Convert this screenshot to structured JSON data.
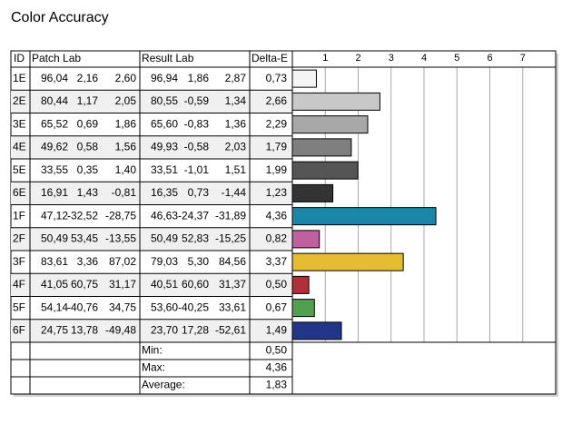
{
  "title": "Color Accuracy",
  "table": {
    "headers": [
      "ID",
      "Patch Lab",
      "Result Lab",
      "Delta-E"
    ],
    "rows": [
      [
        "96,04",
        "2,16",
        "2,60",
        "96,94",
        "1,86",
        "2,87"
      ],
      [
        "80,44",
        "1,17",
        "2,05",
        "80,55",
        "-0,59",
        "1,34"
      ],
      [
        "65,52",
        "0,69",
        "1,86",
        "65,60",
        "-0,83",
        "1,36"
      ],
      [
        "49,62",
        "0,58",
        "1,56",
        "49,93",
        "-0,58",
        "2,03"
      ],
      [
        "33,55",
        "0,35",
        "1,40",
        "33,51",
        "-1,01",
        "1,51"
      ],
      [
        "16,91",
        "1,43",
        "-0,81",
        "16,35",
        "0,73",
        "-1,44"
      ],
      [
        "47,12",
        "-32,52",
        "-28,75",
        "46,63",
        "-24,37",
        "-31,89"
      ],
      [
        "50,49",
        "53,45",
        "-13,55",
        "50,49",
        "52,83",
        "-15,25"
      ],
      [
        "83,61",
        "3,36",
        "87,02",
        "79,03",
        "5,30",
        "84,56"
      ],
      [
        "41,05",
        "60,75",
        "31,17",
        "40,51",
        "60,60",
        "31,37"
      ],
      [
        "54,14",
        "-40,76",
        "34,75",
        "53,60",
        "-40,25",
        "33,61"
      ],
      [
        "24,75",
        "13,78",
        "-49,48",
        "23,70",
        "17,28",
        "-52,61"
      ]
    ],
    "summary": [
      {
        "label": "Min:",
        "value": "0,50"
      },
      {
        "label": "Max:",
        "value": "4,36"
      },
      {
        "label": "Average:",
        "value": "1,83"
      }
    ]
  },
  "chart_data": {
    "type": "bar",
    "orientation": "horizontal",
    "categories": [
      "1E",
      "2E",
      "3E",
      "4E",
      "5E",
      "6E",
      "1F",
      "2F",
      "3F",
      "4F",
      "5F",
      "6F"
    ],
    "values": [
      0.73,
      2.66,
      2.29,
      1.79,
      1.99,
      1.23,
      4.36,
      0.82,
      3.37,
      0.5,
      0.67,
      1.49
    ],
    "value_labels": [
      "0,73",
      "2,66",
      "2,29",
      "1,79",
      "1,99",
      "1,23",
      "4,36",
      "0,82",
      "3,37",
      "0,50",
      "0,67",
      "1,49"
    ],
    "colors": [
      "#f4f4f4",
      "#c8c8c8",
      "#a8a8a8",
      "#7f7f7f",
      "#555555",
      "#333333",
      "#1a86a8",
      "#c060a0",
      "#e6bd30",
      "#b0303a",
      "#50a050",
      "#23378a"
    ],
    "xlim": [
      0,
      8
    ],
    "xticks": [
      1,
      2,
      3,
      4,
      5,
      6,
      7
    ],
    "grid": true
  }
}
